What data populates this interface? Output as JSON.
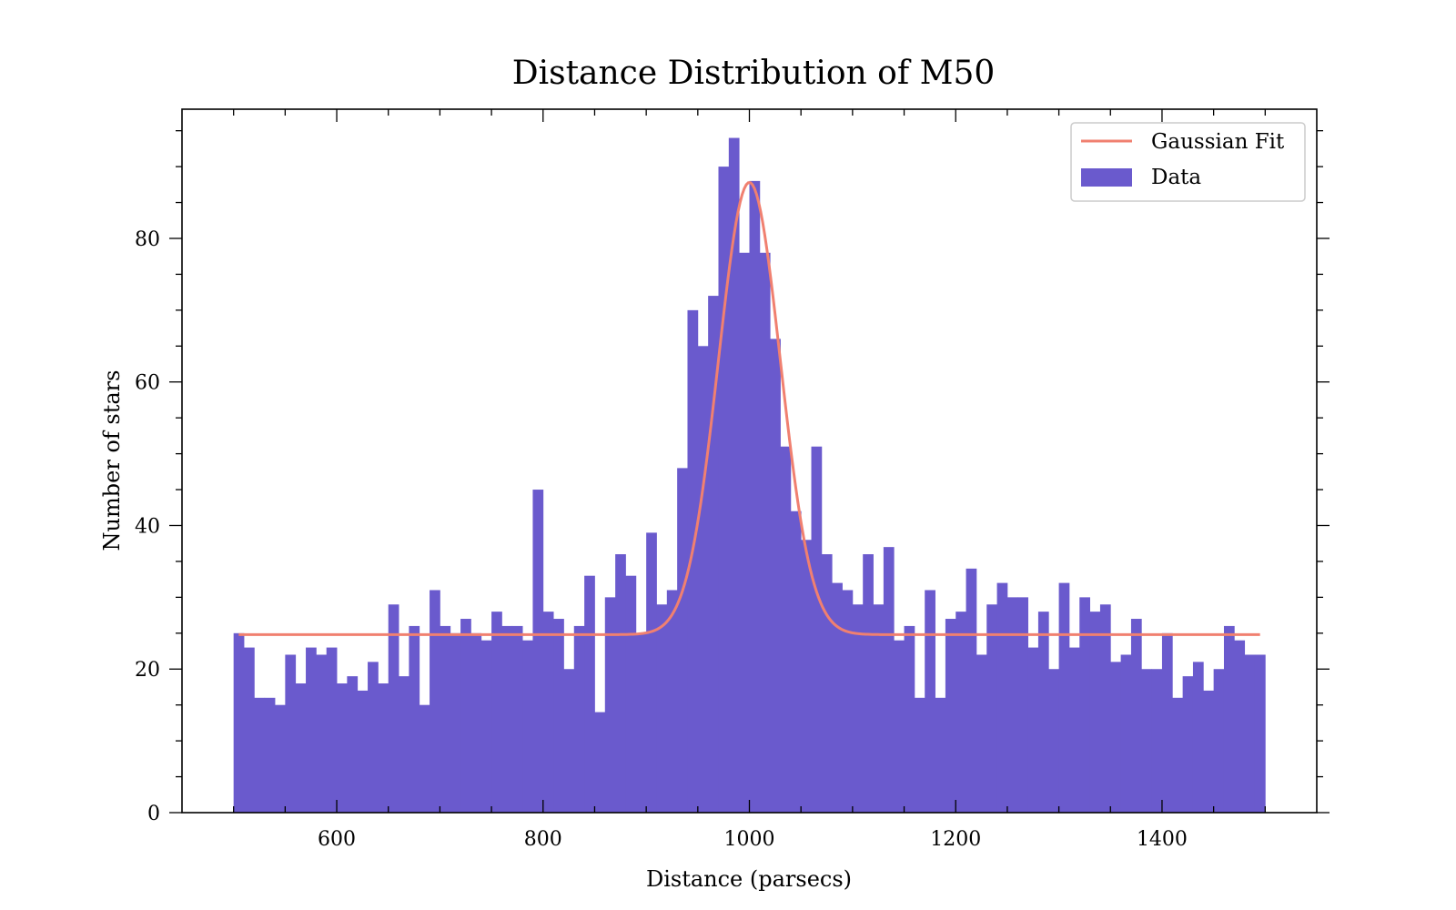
{
  "chart_data": {
    "type": "bar",
    "title": "Distance Distribution of M50",
    "xlabel": "Distance (parsecs)",
    "ylabel": "Number of stars",
    "xlim": [
      450,
      1550
    ],
    "ylim": [
      0,
      98
    ],
    "x_ticks": [
      600,
      800,
      1000,
      1200,
      1400
    ],
    "y_ticks": [
      0,
      20,
      40,
      60,
      80
    ],
    "grid": false,
    "legend_position": "top-right",
    "bin_start": 500,
    "bin_width": 10,
    "histogram": {
      "name": "Data",
      "color": "#6a5acd",
      "values": [
        25,
        23,
        16,
        16,
        15,
        22,
        18,
        23,
        22,
        23,
        18,
        19,
        17,
        21,
        18,
        29,
        19,
        26,
        15,
        31,
        26,
        25,
        27,
        25,
        24,
        28,
        26,
        26,
        24,
        45,
        28,
        27,
        20,
        26,
        33,
        14,
        30,
        36,
        33,
        25,
        39,
        29,
        31,
        48,
        70,
        65,
        72,
        90,
        94,
        78,
        88,
        78,
        66,
        51,
        42,
        38,
        51,
        36,
        32,
        31,
        29,
        36,
        29,
        37,
        24,
        26,
        16,
        31,
        16,
        27,
        28,
        34,
        22,
        29,
        32,
        30,
        30,
        23,
        28,
        20,
        32,
        23,
        30,
        28,
        29,
        21,
        22,
        27,
        20,
        20,
        25,
        16,
        19,
        21,
        17,
        20,
        26,
        24,
        22,
        22
      ]
    },
    "fit": {
      "name": "Gaussian Fit",
      "color": "#f08070",
      "function": "gaussian",
      "baseline": 24.8,
      "amplitude": 63,
      "mean": 1000,
      "sigma": 30,
      "x_range": [
        505,
        1495
      ]
    }
  }
}
